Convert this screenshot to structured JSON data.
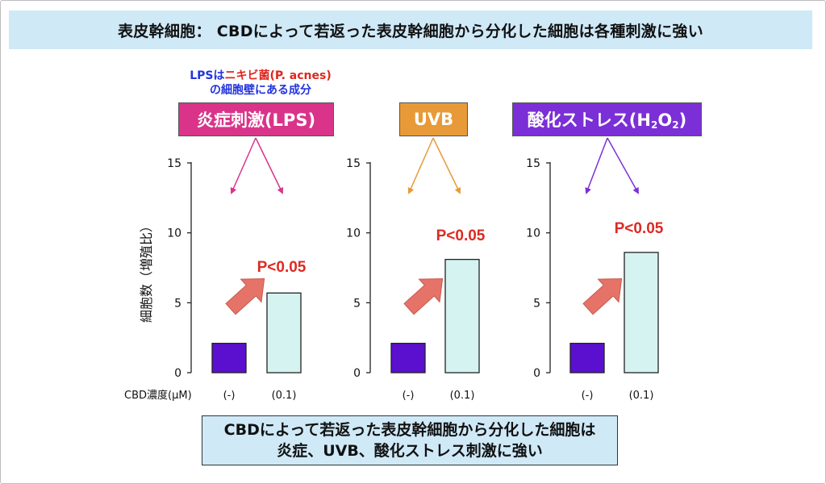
{
  "header": {
    "title": "表皮幹細胞： CBDによって若返った表皮幹細胞から分化した細胞は各種刺激に強い"
  },
  "note": {
    "line1_a": "LPSは",
    "line1_b": "ニキビ菌(P. acnes)",
    "line2": "の細胞壁にある成分"
  },
  "stimuli": [
    {
      "label": "炎症刺激(LPS)",
      "color": "#d9348a"
    },
    {
      "label": "UVB",
      "color": "#e89a38"
    },
    {
      "label_main": "酸化ストレス(H",
      "sub1": "2",
      "mid": "O",
      "sub2": "2",
      "tail": ")",
      "color": "#7b2fd6"
    }
  ],
  "colors": {
    "control_bar": "#5b0fcf",
    "treated_bar": "#d5f3f1",
    "bar_stroke": "#222222",
    "pvalue": "#dd2a22",
    "trend_arrow": "#e57368"
  },
  "chart_data": [
    {
      "type": "bar",
      "panel": "炎症刺激(LPS)",
      "categories": [
        "(-)",
        "(0.1)"
      ],
      "values": [
        2.1,
        5.7
      ],
      "ylim": [
        0,
        15
      ],
      "yticks": [
        0,
        5,
        10,
        15
      ],
      "ylabel": "細胞数（増殖比）",
      "xlabel": "CBD濃度(μM)",
      "annotation": "P<0.05"
    },
    {
      "type": "bar",
      "panel": "UVB",
      "categories": [
        "(-)",
        "(0.1)"
      ],
      "values": [
        2.1,
        8.1
      ],
      "ylim": [
        0,
        15
      ],
      "yticks": [
        0,
        5,
        10,
        15
      ],
      "annotation": "P<0.05"
    },
    {
      "type": "bar",
      "panel": "酸化ストレス(H2O2)",
      "categories": [
        "(-)",
        "(0.1)"
      ],
      "values": [
        2.1,
        8.6
      ],
      "ylim": [
        0,
        15
      ],
      "yticks": [
        0,
        5,
        10,
        15
      ],
      "annotation": "P<0.05"
    }
  ],
  "summary": {
    "line1": "CBDによって若返った表皮幹細胞から分化した細胞は",
    "line2": "炎症、UVB、酸化ストレス刺激に強い"
  }
}
